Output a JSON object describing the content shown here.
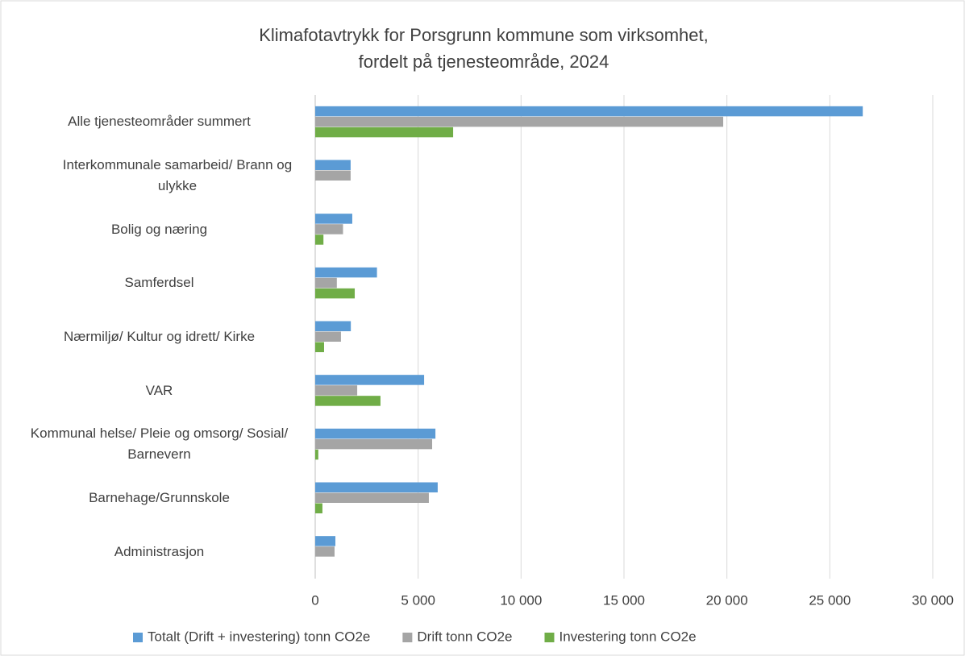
{
  "chart_data": {
    "type": "hbar",
    "title": [
      "Klimafotavtrykk for Porsgrunn kommune som virksomhet,",
      "fordelt på tjenesteområde, 2024"
    ],
    "categories": [
      "Alle tjenesteområder summert",
      "Interkommunale samarbeid/ Brann og ulykke",
      "Bolig og næring",
      "Samferdsel",
      "Nærmiljø/ Kultur og idrett/ Kirke",
      "VAR",
      "Kommunal helse/ Pleie og omsorg/ Sosial/ Barnevern",
      "Barnehage/Grunnskole",
      "Administrasjon"
    ],
    "series": [
      {
        "name": "Totalt (Drift + investering) tonn CO2e",
        "color": "#5b9bd5",
        "values": [
          26600,
          1720,
          1800,
          3000,
          1730,
          5290,
          5840,
          5950,
          980
        ]
      },
      {
        "name": "Drift tonn CO2e",
        "color": "#a5a5a5",
        "values": [
          19820,
          1720,
          1350,
          1050,
          1250,
          2040,
          5680,
          5520,
          940
        ]
      },
      {
        "name": "Investering tonn CO2e",
        "color": "#70ad47",
        "values": [
          6700,
          0,
          400,
          1920,
          430,
          3170,
          150,
          350,
          0
        ]
      }
    ],
    "xlim": [
      0,
      30000
    ],
    "xticks": [
      0,
      {
        "value": 5000,
        "label": "5 000"
      },
      {
        "value": 10000,
        "label": "10 000"
      },
      {
        "value": 15000,
        "label": "15 000"
      },
      {
        "value": 20000,
        "label": "20 000"
      },
      {
        "value": 25000,
        "label": "25 000"
      },
      {
        "value": 30000,
        "label": "30 000"
      }
    ],
    "grid": true,
    "legend": "bottom"
  }
}
